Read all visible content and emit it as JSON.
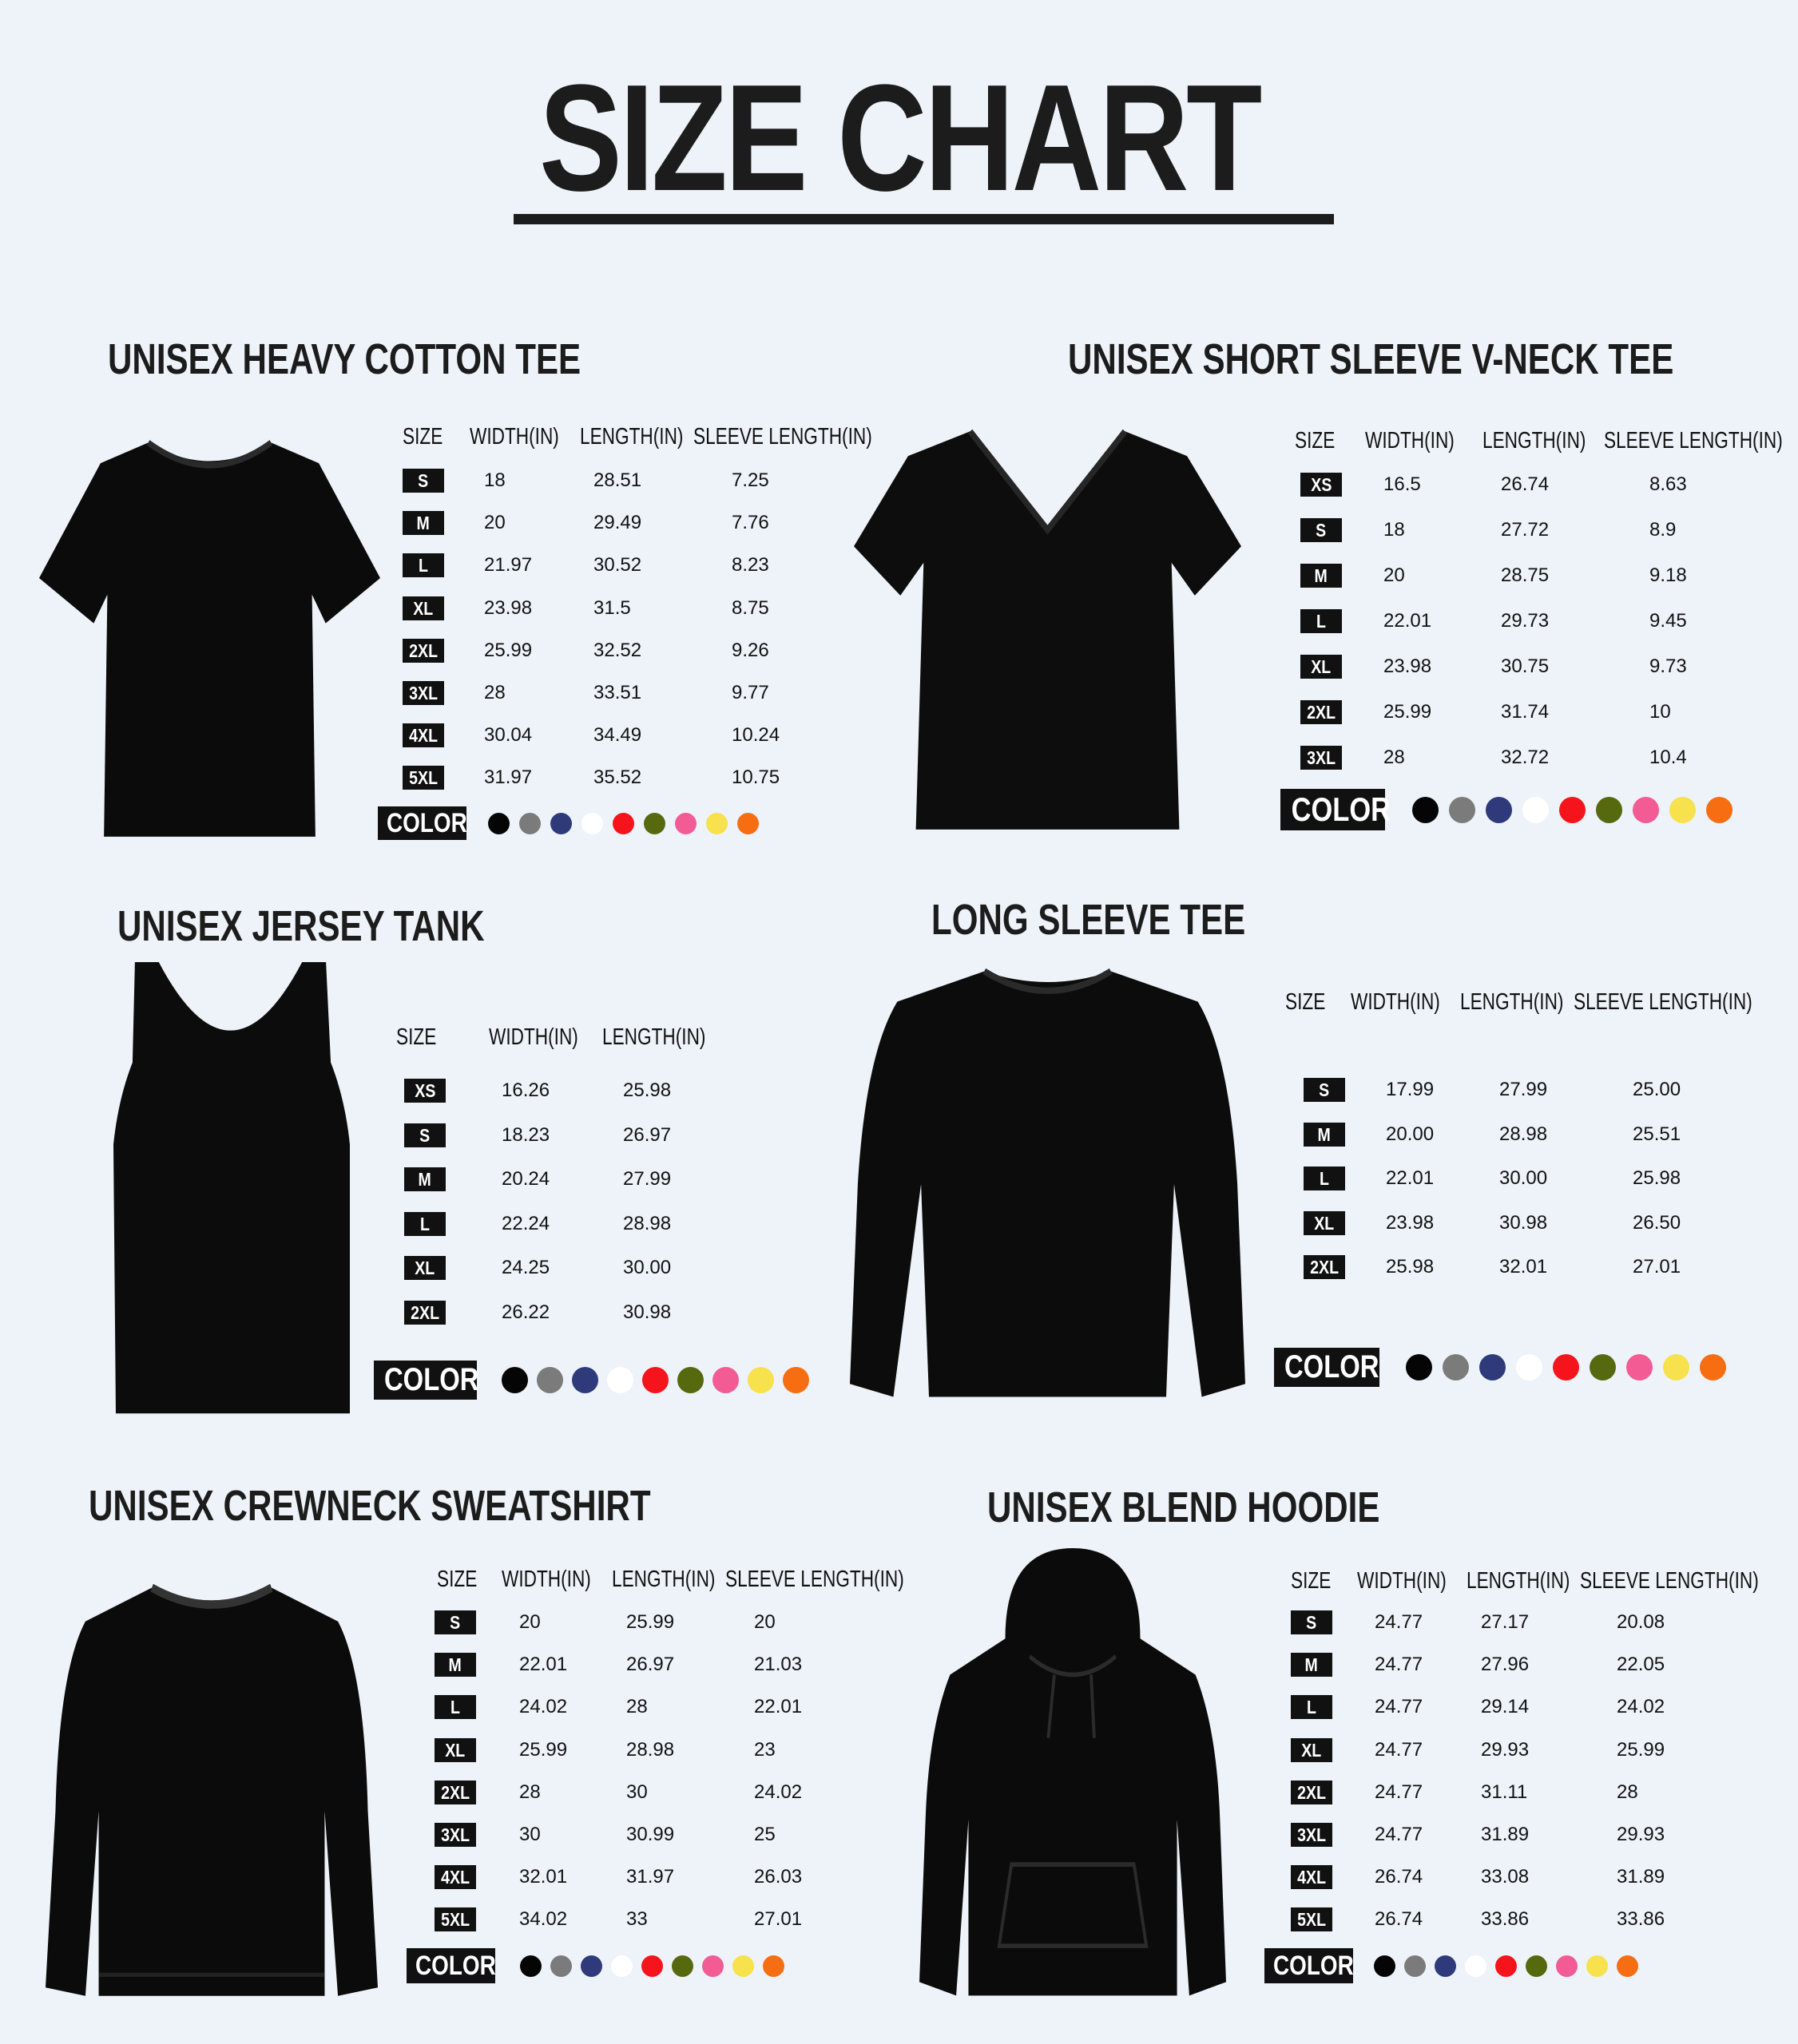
{
  "title": "SIZE CHART",
  "color_label": "COLOR",
  "swatches": [
    "#050505",
    "#7b7b7b",
    "#2f3a7a",
    "#ffffff",
    "#f5141b",
    "#56690f",
    "#f25b93",
    "#f7e14c",
    "#f76d12"
  ],
  "sections": [
    {
      "title": "UNISEX HEAVY COTTON TEE",
      "garment": "tshirt",
      "headers": [
        "SIZE",
        "WIDTH(IN)",
        "LENGTH(IN)",
        "SLEEVE LENGTH(IN)"
      ],
      "rows": [
        [
          "S",
          "18",
          "28.51",
          "7.25"
        ],
        [
          "M",
          "20",
          "29.49",
          "7.76"
        ],
        [
          "L",
          "21.97",
          "30.52",
          "8.23"
        ],
        [
          "XL",
          "23.98",
          "31.5",
          "8.75"
        ],
        [
          "2XL",
          "25.99",
          "32.52",
          "9.26"
        ],
        [
          "3XL",
          "28",
          "33.51",
          "9.77"
        ],
        [
          "4XL",
          "30.04",
          "34.49",
          "10.24"
        ],
        [
          "5XL",
          "31.97",
          "35.52",
          "10.75"
        ]
      ]
    },
    {
      "title": "UNISEX SHORT SLEEVE V-NECK TEE",
      "garment": "vneck",
      "headers": [
        "SIZE",
        "WIDTH(IN)",
        "LENGTH(IN)",
        "SLEEVE LENGTH(IN)"
      ],
      "rows": [
        [
          "XS",
          "16.5",
          "26.74",
          "8.63"
        ],
        [
          "S",
          "18",
          "27.72",
          "8.9"
        ],
        [
          "M",
          "20",
          "28.75",
          "9.18"
        ],
        [
          "L",
          "22.01",
          "29.73",
          "9.45"
        ],
        [
          "XL",
          "23.98",
          "30.75",
          "9.73"
        ],
        [
          "2XL",
          "25.99",
          "31.74",
          "10"
        ],
        [
          "3XL",
          "28",
          "32.72",
          "10.4"
        ]
      ]
    },
    {
      "title": "UNISEX JERSEY TANK",
      "garment": "tank",
      "headers": [
        "SIZE",
        "WIDTH(IN)",
        "LENGTH(IN)"
      ],
      "rows": [
        [
          "XS",
          "16.26",
          "25.98"
        ],
        [
          "S",
          "18.23",
          "26.97"
        ],
        [
          "M",
          "20.24",
          "27.99"
        ],
        [
          "L",
          "22.24",
          "28.98"
        ],
        [
          "XL",
          "24.25",
          "30.00"
        ],
        [
          "2XL",
          "26.22",
          "30.98"
        ]
      ]
    },
    {
      "title": "LONG SLEEVE TEE",
      "garment": "longsleeve",
      "headers": [
        "SIZE",
        "WIDTH(IN)",
        "LENGTH(IN)",
        "SLEEVE LENGTH(IN)"
      ],
      "rows": [
        [
          "S",
          "17.99",
          "27.99",
          "25.00"
        ],
        [
          "M",
          "20.00",
          "28.98",
          "25.51"
        ],
        [
          "L",
          "22.01",
          "30.00",
          "25.98"
        ],
        [
          "XL",
          "23.98",
          "30.98",
          "26.50"
        ],
        [
          "2XL",
          "25.98",
          "32.01",
          "27.01"
        ]
      ]
    },
    {
      "title": "UNISEX CREWNECK SWEATSHIRT",
      "garment": "sweatshirt",
      "headers": [
        "SIZE",
        "WIDTH(IN)",
        "LENGTH(IN)",
        "SLEEVE LENGTH(IN)"
      ],
      "rows": [
        [
          "S",
          "20",
          "25.99",
          "20"
        ],
        [
          "M",
          "22.01",
          "26.97",
          "21.03"
        ],
        [
          "L",
          "24.02",
          "28",
          "22.01"
        ],
        [
          "XL",
          "25.99",
          "28.98",
          "23"
        ],
        [
          "2XL",
          "28",
          "30",
          "24.02"
        ],
        [
          "3XL",
          "30",
          "30.99",
          "25"
        ],
        [
          "4XL",
          "32.01",
          "31.97",
          "26.03"
        ],
        [
          "5XL",
          "34.02",
          "33",
          "27.01"
        ]
      ]
    },
    {
      "title": "UNISEX BLEND HOODIE",
      "garment": "hoodie",
      "headers": [
        "SIZE",
        "WIDTH(IN)",
        "LENGTH(IN)",
        "SLEEVE LENGTH(IN)"
      ],
      "rows": [
        [
          "S",
          "24.77",
          "27.17",
          "20.08"
        ],
        [
          "M",
          "24.77",
          "27.96",
          "22.05"
        ],
        [
          "L",
          "24.77",
          "29.14",
          "24.02"
        ],
        [
          "XL",
          "24.77",
          "29.93",
          "25.99"
        ],
        [
          "2XL",
          "24.77",
          "31.11",
          "28"
        ],
        [
          "3XL",
          "24.77",
          "31.89",
          "29.93"
        ],
        [
          "4XL",
          "26.74",
          "33.08",
          "31.89"
        ],
        [
          "5XL",
          "26.74",
          "33.86",
          "33.86"
        ]
      ]
    }
  ]
}
